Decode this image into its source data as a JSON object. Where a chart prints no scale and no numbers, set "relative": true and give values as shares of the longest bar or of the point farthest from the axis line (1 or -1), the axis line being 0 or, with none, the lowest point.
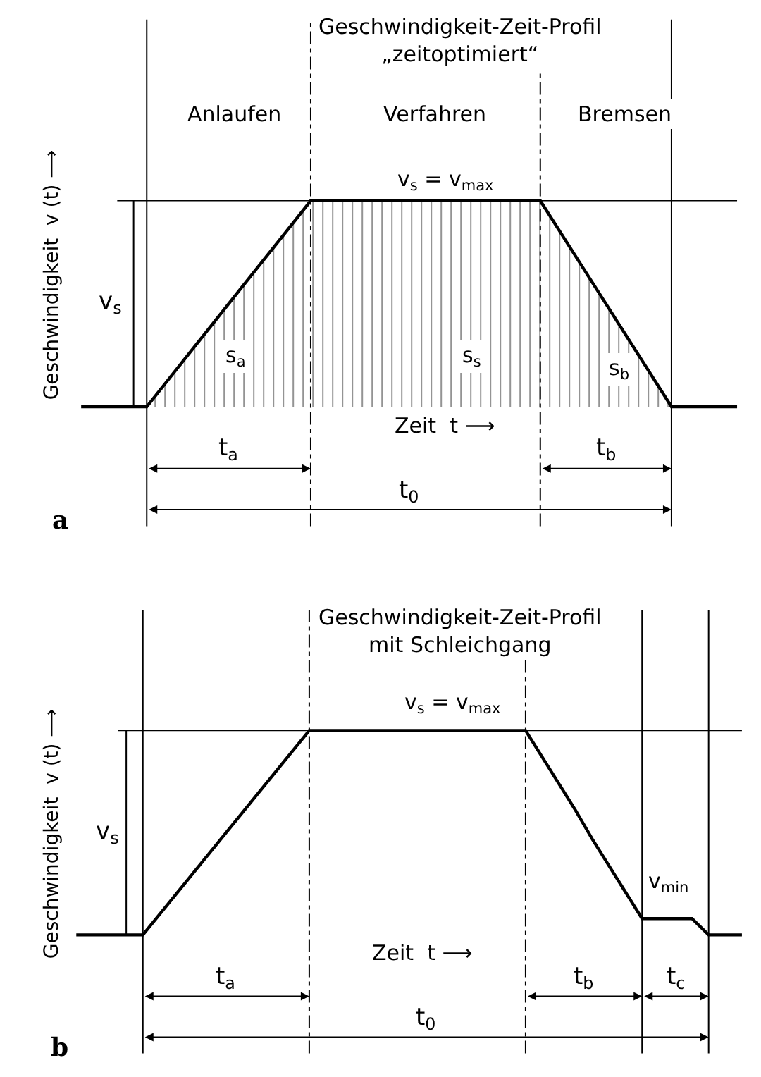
{
  "chart_data": [
    {
      "type": "area",
      "relative": true,
      "title": "Geschwindigkeit-Zeit-Profil",
      "subtitle": "„zeitoptimiert“",
      "ylabel": "Geschwindigkeit  v (t) ⟶",
      "grid": "x",
      "categories": [
        null,
        null,
        null,
        null,
        null,
        null,
        null,
        null,
        null,
        null,
        null,
        null,
        null,
        null,
        null,
        null,
        null,
        null,
        null,
        null,
        null
      ],
      "series": [
        {
          "color": "#000000",
          "values": [
            0,
            0,
            0,
            0.2,
            0.4,
            0.6,
            0.8,
            1,
            1,
            1,
            1,
            1,
            1,
            1,
            1,
            0.75,
            0.5,
            0.25,
            0,
            0,
            0
          ]
        }
      ],
      "annotations": [
        "Anlaufen",
        "Verfahren",
        "Bremsen",
        "v$_{s}$ = v$_{max}$",
        "s$_{a}$",
        "s$_{s}$",
        "s$_{b}$",
        "Zeit  t ⟶",
        "v$_{s}$",
        "t$_{a}$",
        "t$_{b}$",
        "t$_{0}$",
        "a"
      ]
    },
    {
      "type": "line",
      "relative": true,
      "title": "Geschwindigkeit-Zeit-Profil",
      "subtitle": "mit Schleichgang",
      "ylabel": "Geschwindigkeit  v (t) ⟶",
      "grid": "x",
      "categories": [
        null,
        null,
        null,
        null,
        null,
        null,
        null,
        null,
        null,
        null,
        null,
        null,
        null,
        null,
        null,
        null,
        null,
        null,
        null,
        null,
        null,
        null,
        null,
        null,
        null,
        null,
        null,
        null,
        null,
        null,
        null,
        null,
        null,
        null,
        null,
        null,
        null,
        null,
        null,
        null,
        null
      ],
      "series": [
        {
          "color": "#000000",
          "values": [
            0,
            0,
            0,
            0,
            0,
            0.1,
            0.2,
            0.3,
            0.4,
            0.5,
            0.6,
            0.7,
            0.8,
            0.9,
            1,
            1,
            1,
            1,
            1,
            1,
            1,
            1,
            1,
            1,
            1,
            1,
            1,
            1,
            0.87,
            0.74,
            0.61,
            0.47,
            0.34,
            0.21,
            0.08,
            0.08,
            0.08,
            0.08,
            0,
            0,
            0
          ]
        }
      ],
      "annotations": [
        "v$_{s}$ = v$_{max}$",
        "v$_{min}$",
        "Zeit  t ⟶",
        "v$_{s}$",
        "t$_{a}$",
        "t$_{b}$",
        "t$_{c}$",
        "t$_{0}$",
        "b"
      ]
    }
  ]
}
